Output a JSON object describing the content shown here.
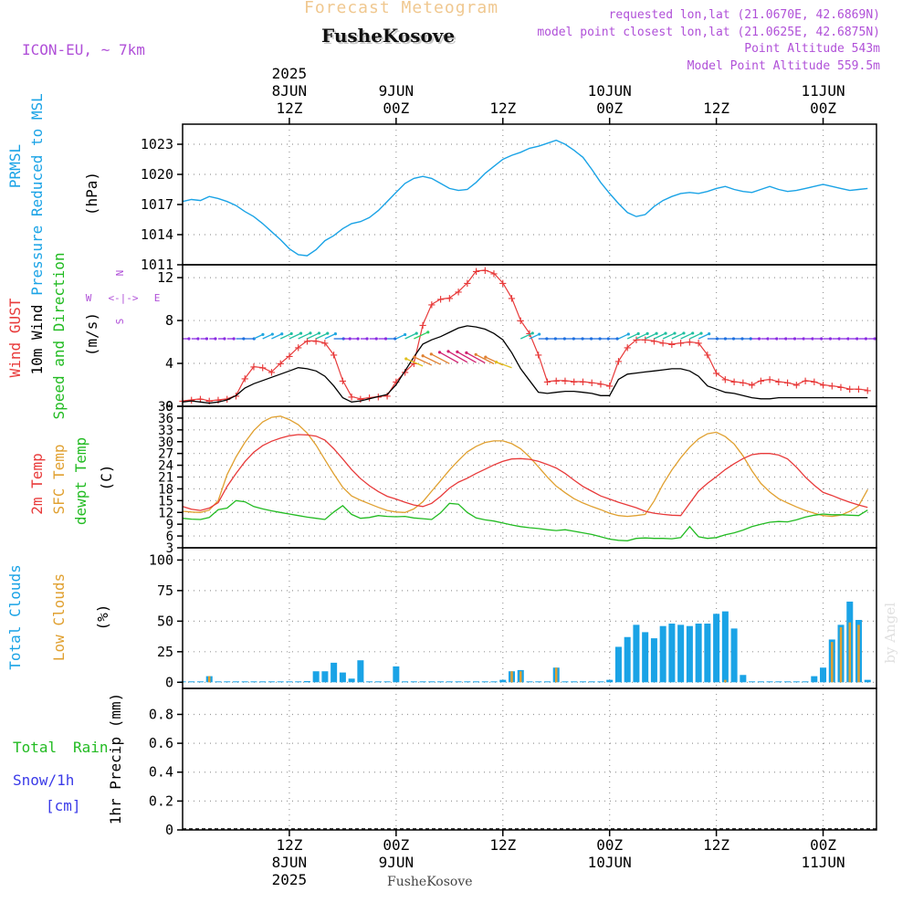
{
  "header": {
    "model": "ICON-EU, ~ 7km",
    "title": "Forecast Meteogram",
    "location": "FusheKosove",
    "requested": "requested lon,lat (21.0670E, 42.6869N)",
    "closest": "model point closest lon,lat (21.0625E, 42.6875N)",
    "point_altitude": "Point Altitude 543m",
    "model_altitude": "Model Point Altitude 559.5m"
  },
  "footer": {
    "location": "FusheKosove",
    "credit": "by Angel"
  },
  "time_axis": {
    "hours_total": 78,
    "top_ticks": [
      {
        "hour": 12,
        "lines": [
          "2025",
          "8JUN",
          "12Z"
        ]
      },
      {
        "hour": 24,
        "lines": [
          "9JUN",
          "00Z"
        ]
      },
      {
        "hour": 36,
        "lines": [
          "12Z"
        ]
      },
      {
        "hour": 48,
        "lines": [
          "10JUN",
          "00Z"
        ]
      },
      {
        "hour": 60,
        "lines": [
          "12Z"
        ]
      },
      {
        "hour": 72,
        "lines": [
          "11JUN",
          "00Z"
        ]
      }
    ],
    "bottom_ticks": [
      {
        "hour": 12,
        "lines": [
          "12Z",
          "8JUN",
          "2025"
        ]
      },
      {
        "hour": 24,
        "lines": [
          "00Z",
          "9JUN"
        ]
      },
      {
        "hour": 36,
        "lines": [
          "12Z"
        ]
      },
      {
        "hour": 48,
        "lines": [
          "00Z",
          "10JUN"
        ]
      },
      {
        "hour": 60,
        "lines": [
          "12Z"
        ]
      },
      {
        "hour": 72,
        "lines": [
          "00Z",
          "11JUN"
        ]
      }
    ]
  },
  "colors": {
    "pressure": "#1aa3e6",
    "gust": "#e83a3a",
    "wind": "#000000",
    "temp": "#e83a3a",
    "sfc": "#e0a030",
    "dewpt": "#22bb22",
    "clouds": "#1aa3e6",
    "low": "#e0a030",
    "purple": "#b050d8",
    "rain": "#22bb22",
    "snow": "#3a3ae8"
  },
  "chart_data": [
    {
      "type": "line",
      "panel": "pressure",
      "ylabel": [
        "PRMSL",
        "Pressure Reduced to MSL",
        "(hPa)"
      ],
      "ylim": [
        1011,
        1025
      ],
      "yticks": [
        1011,
        1014,
        1017,
        1020,
        1023
      ],
      "x": [
        0,
        1,
        2,
        3,
        4,
        5,
        6,
        7,
        8,
        9,
        10,
        11,
        12,
        13,
        14,
        15,
        16,
        17,
        18,
        19,
        20,
        21,
        22,
        23,
        24,
        25,
        26,
        27,
        28,
        29,
        30,
        31,
        32,
        33,
        34,
        35,
        36,
        37,
        38,
        39,
        40,
        41,
        42,
        43,
        44,
        45,
        46,
        47,
        48,
        49,
        50,
        51,
        52,
        53,
        54,
        55,
        56,
        57,
        58,
        59,
        60,
        61,
        62,
        63,
        64,
        65,
        66,
        67,
        68,
        69,
        70,
        71,
        72,
        73,
        74,
        75,
        76,
        77
      ],
      "series": [
        {
          "name": "PRMSL",
          "values": [
            1017.3,
            1017.5,
            1017.4,
            1017.8,
            1017.6,
            1017.3,
            1016.9,
            1016.3,
            1015.8,
            1015.1,
            1014.3,
            1013.5,
            1012.6,
            1012.0,
            1011.9,
            1012.5,
            1013.4,
            1013.9,
            1014.6,
            1015.1,
            1015.3,
            1015.7,
            1016.4,
            1017.3,
            1018.2,
            1019.1,
            1019.6,
            1019.8,
            1019.6,
            1019.1,
            1018.6,
            1018.4,
            1018.5,
            1019.2,
            1020.1,
            1020.8,
            1021.5,
            1021.9,
            1022.2,
            1022.6,
            1022.8,
            1023.1,
            1023.4,
            1023.0,
            1022.4,
            1021.7,
            1020.5,
            1019.2,
            1018.1,
            1017.1,
            1016.2,
            1015.8,
            1016.0,
            1016.8,
            1017.4,
            1017.8,
            1018.1,
            1018.2,
            1018.1,
            1018.3,
            1018.6,
            1018.8,
            1018.5,
            1018.3,
            1018.2,
            1018.5,
            1018.8,
            1018.5,
            1018.3,
            1018.4,
            1018.6,
            1018.8,
            1019.0,
            1018.8,
            1018.6,
            1018.4,
            1018.5,
            1018.6
          ]
        }
      ]
    },
    {
      "type": "line",
      "panel": "wind",
      "ylabel": [
        "Wind GUST",
        "10m Wind",
        "Speed and Direction",
        "(m/s)"
      ],
      "compass": {
        "n": "N",
        "s": "S",
        "w": "W",
        "e": "E",
        "arrow": "<-|->"
      },
      "ylim": [
        0,
        13.2
      ],
      "yticks": [
        0,
        4,
        8,
        12
      ],
      "x": [
        0,
        1,
        2,
        3,
        4,
        5,
        6,
        7,
        8,
        9,
        10,
        11,
        12,
        13,
        14,
        15,
        16,
        17,
        18,
        19,
        20,
        21,
        22,
        23,
        24,
        25,
        26,
        27,
        28,
        29,
        30,
        31,
        32,
        33,
        34,
        35,
        36,
        37,
        38,
        39,
        40,
        41,
        42,
        43,
        44,
        45,
        46,
        47,
        48,
        49,
        50,
        51,
        52,
        53,
        54,
        55,
        56,
        57,
        58,
        59,
        60,
        61,
        62,
        63,
        64,
        65,
        66,
        67,
        68,
        69,
        70,
        71,
        72,
        73,
        74,
        75,
        76,
        77
      ],
      "series": [
        {
          "name": "Wind GUST",
          "values": [
            0.5,
            0.6,
            0.7,
            0.5,
            0.6,
            0.7,
            1.0,
            2.6,
            3.7,
            3.6,
            3.2,
            4.0,
            4.7,
            5.5,
            6.1,
            6.1,
            5.9,
            4.8,
            2.4,
            0.9,
            0.7,
            0.8,
            0.9,
            1.0,
            2.3,
            3.2,
            4.0,
            7.6,
            9.5,
            10.0,
            10.1,
            10.7,
            11.5,
            12.6,
            12.7,
            12.4,
            11.5,
            10.1,
            8.0,
            6.8,
            4.8,
            2.3,
            2.4,
            2.4,
            2.3,
            2.3,
            2.2,
            2.1,
            1.9,
            4.2,
            5.5,
            6.2,
            6.2,
            6.1,
            5.9,
            5.8,
            5.9,
            6.0,
            5.9,
            4.8,
            3.1,
            2.5,
            2.3,
            2.2,
            2.0,
            2.4,
            2.5,
            2.3,
            2.2,
            2.0,
            2.4,
            2.3,
            2.0,
            1.9,
            1.8,
            1.6,
            1.6,
            1.5
          ]
        },
        {
          "name": "10m Wind",
          "values": [
            0.4,
            0.5,
            0.4,
            0.3,
            0.4,
            0.6,
            1.0,
            1.7,
            2.1,
            2.4,
            2.7,
            3.0,
            3.3,
            3.6,
            3.5,
            3.3,
            2.8,
            1.9,
            0.8,
            0.4,
            0.5,
            0.7,
            0.9,
            1.1,
            2.0,
            3.3,
            4.6,
            5.8,
            6.2,
            6.5,
            6.9,
            7.3,
            7.5,
            7.4,
            7.2,
            6.8,
            6.2,
            5.0,
            3.5,
            2.4,
            1.3,
            1.2,
            1.3,
            1.4,
            1.4,
            1.3,
            1.2,
            1.0,
            1.0,
            2.5,
            3.0,
            3.1,
            3.2,
            3.3,
            3.4,
            3.5,
            3.5,
            3.3,
            2.8,
            1.9,
            1.6,
            1.3,
            1.2,
            1.0,
            0.8,
            0.7,
            0.7,
            0.8,
            0.8,
            0.8,
            0.8,
            0.8,
            0.8,
            0.8,
            0.8,
            0.8,
            0.8,
            0.8
          ]
        }
      ]
    },
    {
      "type": "line",
      "panel": "temperature",
      "ylabel": [
        "2m Temp",
        "SFC Temp",
        "dewpt Temp",
        "(C)"
      ],
      "ylim": [
        3,
        39
      ],
      "yticks": [
        3,
        6,
        9,
        12,
        15,
        18,
        21,
        24,
        27,
        30,
        33,
        36,
        39
      ],
      "x": [
        0,
        1,
        2,
        3,
        4,
        5,
        6,
        7,
        8,
        9,
        10,
        11,
        12,
        13,
        14,
        15,
        16,
        17,
        18,
        19,
        20,
        21,
        22,
        23,
        24,
        25,
        26,
        27,
        28,
        29,
        30,
        31,
        32,
        33,
        34,
        35,
        36,
        37,
        38,
        39,
        40,
        41,
        42,
        43,
        44,
        45,
        46,
        47,
        48,
        49,
        50,
        51,
        52,
        53,
        54,
        55,
        56,
        57,
        58,
        59,
        60,
        61,
        62,
        63,
        64,
        65,
        66,
        67,
        68,
        69,
        70,
        71,
        72,
        73,
        74,
        75,
        76,
        77
      ],
      "series": [
        {
          "name": "2m Temp",
          "values": [
            13.5,
            12.8,
            12.5,
            13.1,
            14.5,
            18.6,
            21.9,
            24.9,
            27.3,
            29.0,
            30.1,
            30.9,
            31.5,
            31.8,
            31.7,
            31.4,
            30.4,
            28.2,
            25.6,
            22.9,
            20.6,
            18.8,
            17.3,
            16.1,
            15.4,
            14.6,
            13.9,
            13.5,
            14.3,
            16.1,
            18.2,
            19.7,
            20.7,
            21.9,
            23.0,
            24.1,
            25.0,
            25.6,
            25.7,
            25.5,
            25.0,
            24.2,
            23.3,
            21.9,
            20.2,
            18.6,
            17.4,
            16.2,
            15.4,
            14.6,
            13.9,
            13.2,
            12.3,
            11.8,
            11.5,
            11.3,
            11.2,
            14.3,
            17.4,
            19.4,
            21.1,
            22.9,
            24.4,
            25.7,
            26.7,
            27.0,
            27.0,
            26.6,
            25.6,
            23.5,
            21.0,
            18.9,
            17.1,
            16.3,
            15.4,
            14.6,
            13.9,
            13.3
          ]
        },
        {
          "name": "SFC Temp",
          "values": [
            12.3,
            12.1,
            12.0,
            12.6,
            15.0,
            21.6,
            26.1,
            29.8,
            32.8,
            35.0,
            36.2,
            36.5,
            35.6,
            34.3,
            32.2,
            29.1,
            25.4,
            21.8,
            18.4,
            16.2,
            15.1,
            14.2,
            13.3,
            12.5,
            12.1,
            12.0,
            12.9,
            14.7,
            17.4,
            20.1,
            22.8,
            25.2,
            27.4,
            28.8,
            29.8,
            30.2,
            30.2,
            29.5,
            28.2,
            26.1,
            23.6,
            21.0,
            18.7,
            17.0,
            15.5,
            14.4,
            13.5,
            12.7,
            11.8,
            11.2,
            11.0,
            11.2,
            11.5,
            14.9,
            19.2,
            22.8,
            25.9,
            28.6,
            30.7,
            32.0,
            32.4,
            31.3,
            29.4,
            26.4,
            22.6,
            19.4,
            17.2,
            15.5,
            14.4,
            13.4,
            12.5,
            11.8,
            11.2,
            11.0,
            11.3,
            12.3,
            13.7,
            17.8
          ]
        },
        {
          "name": "dewpt Temp",
          "values": [
            10.5,
            10.3,
            10.2,
            10.7,
            12.7,
            13.1,
            15.0,
            14.7,
            13.5,
            12.9,
            12.4,
            12.0,
            11.6,
            11.2,
            10.8,
            10.5,
            10.2,
            12.1,
            13.7,
            11.5,
            10.5,
            10.7,
            11.2,
            11.0,
            10.9,
            11.0,
            10.6,
            10.4,
            10.2,
            11.9,
            14.3,
            14.1,
            12.0,
            10.6,
            10.1,
            9.8,
            9.3,
            8.8,
            8.4,
            8.1,
            7.9,
            7.6,
            7.4,
            7.6,
            7.2,
            6.8,
            6.4,
            5.8,
            5.2,
            4.9,
            4.8,
            5.4,
            5.5,
            5.4,
            5.4,
            5.3,
            5.6,
            8.4,
            5.8,
            5.4,
            5.6,
            6.3,
            6.8,
            7.5,
            8.4,
            9.0,
            9.5,
            9.7,
            9.6,
            10.1,
            10.8,
            11.3,
            11.6,
            11.4,
            11.4,
            11.3,
            11.2,
            12.6
          ]
        }
      ]
    },
    {
      "type": "bar",
      "panel": "clouds",
      "ylabel": [
        "Total Clouds",
        "Low Clouds",
        "(%)"
      ],
      "ylim": [
        -5,
        110
      ],
      "yticks": [
        0,
        25,
        50,
        75,
        100
      ],
      "x": [
        0,
        1,
        2,
        3,
        4,
        5,
        6,
        7,
        8,
        9,
        10,
        11,
        12,
        13,
        14,
        15,
        16,
        17,
        18,
        19,
        20,
        21,
        22,
        23,
        24,
        25,
        26,
        27,
        28,
        29,
        30,
        31,
        32,
        33,
        34,
        35,
        36,
        37,
        38,
        39,
        40,
        41,
        42,
        43,
        44,
        45,
        46,
        47,
        48,
        49,
        50,
        51,
        52,
        53,
        54,
        55,
        56,
        57,
        58,
        59,
        60,
        61,
        62,
        63,
        64,
        65,
        66,
        67,
        68,
        69,
        70,
        71,
        72,
        73,
        74,
        75,
        76,
        77
      ],
      "series": [
        {
          "name": "Total Clouds",
          "values": [
            0,
            0,
            0,
            5,
            0,
            0,
            0,
            0,
            0,
            0,
            0,
            0,
            0,
            0,
            1,
            9,
            9,
            16,
            8,
            3,
            18,
            0,
            0,
            0,
            13,
            0,
            0,
            0,
            0,
            0,
            0,
            0,
            0,
            0,
            0,
            0,
            2,
            9,
            10,
            0,
            0,
            0,
            12,
            0,
            0,
            0,
            0,
            0,
            2,
            29,
            37,
            47,
            41,
            36,
            46,
            48,
            47,
            46,
            48,
            48,
            56,
            58,
            44,
            6,
            0,
            0,
            0,
            0,
            0,
            0,
            0,
            5,
            12,
            35,
            47,
            66,
            51,
            2
          ]
        },
        {
          "name": "Low Clouds",
          "values": [
            0,
            0,
            0,
            5,
            0,
            0,
            0,
            0,
            0,
            0,
            0,
            0,
            0,
            0,
            0,
            0,
            0,
            0,
            0,
            0,
            0,
            0,
            0,
            0,
            0,
            0,
            0,
            0,
            0,
            0,
            0,
            0,
            0,
            0,
            0,
            0,
            0,
            9,
            9,
            0,
            0,
            0,
            12,
            0,
            0,
            0,
            0,
            0,
            0,
            0,
            0,
            0,
            0,
            0,
            0,
            0,
            0,
            0,
            0,
            0,
            0,
            2,
            0,
            0,
            0,
            0,
            0,
            0,
            0,
            0,
            0,
            0,
            0,
            33,
            45,
            49,
            47,
            0
          ]
        }
      ]
    },
    {
      "type": "line",
      "panel": "precip",
      "ylabel": [
        "1hr Precip (mm)"
      ],
      "legend": [
        "Total",
        "Rain",
        "Snow/1h",
        "[cm]"
      ],
      "ylim": [
        0,
        0.98
      ],
      "yticks": [
        "0",
        "0.2",
        "0.4",
        "0.6",
        "0.8"
      ],
      "series": [
        {
          "name": "Total Rain",
          "values": [
            0
          ]
        }
      ]
    }
  ]
}
